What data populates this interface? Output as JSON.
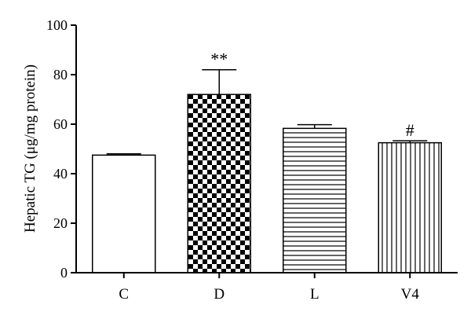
{
  "chart_data": {
    "type": "bar",
    "title": "",
    "xlabel": "",
    "ylabel": "Hepatic TG (μg/mg protein)",
    "ylim": [
      0,
      100
    ],
    "yticks": [
      0,
      20,
      40,
      60,
      80,
      100
    ],
    "ytick_labels": [
      "0",
      "20",
      "40",
      "60",
      "80",
      "100"
    ],
    "grid": false,
    "categories": [
      "C",
      "D",
      "L",
      "V4"
    ],
    "values": [
      47.5,
      72,
      58.3,
      52.5
    ],
    "errors": [
      0.5,
      10,
      1.5,
      0.8
    ],
    "patterns": [
      "none",
      "checkerboard",
      "horizontal-lines",
      "vertical-lines"
    ],
    "annotations": [
      "",
      "**",
      "",
      "#"
    ]
  }
}
